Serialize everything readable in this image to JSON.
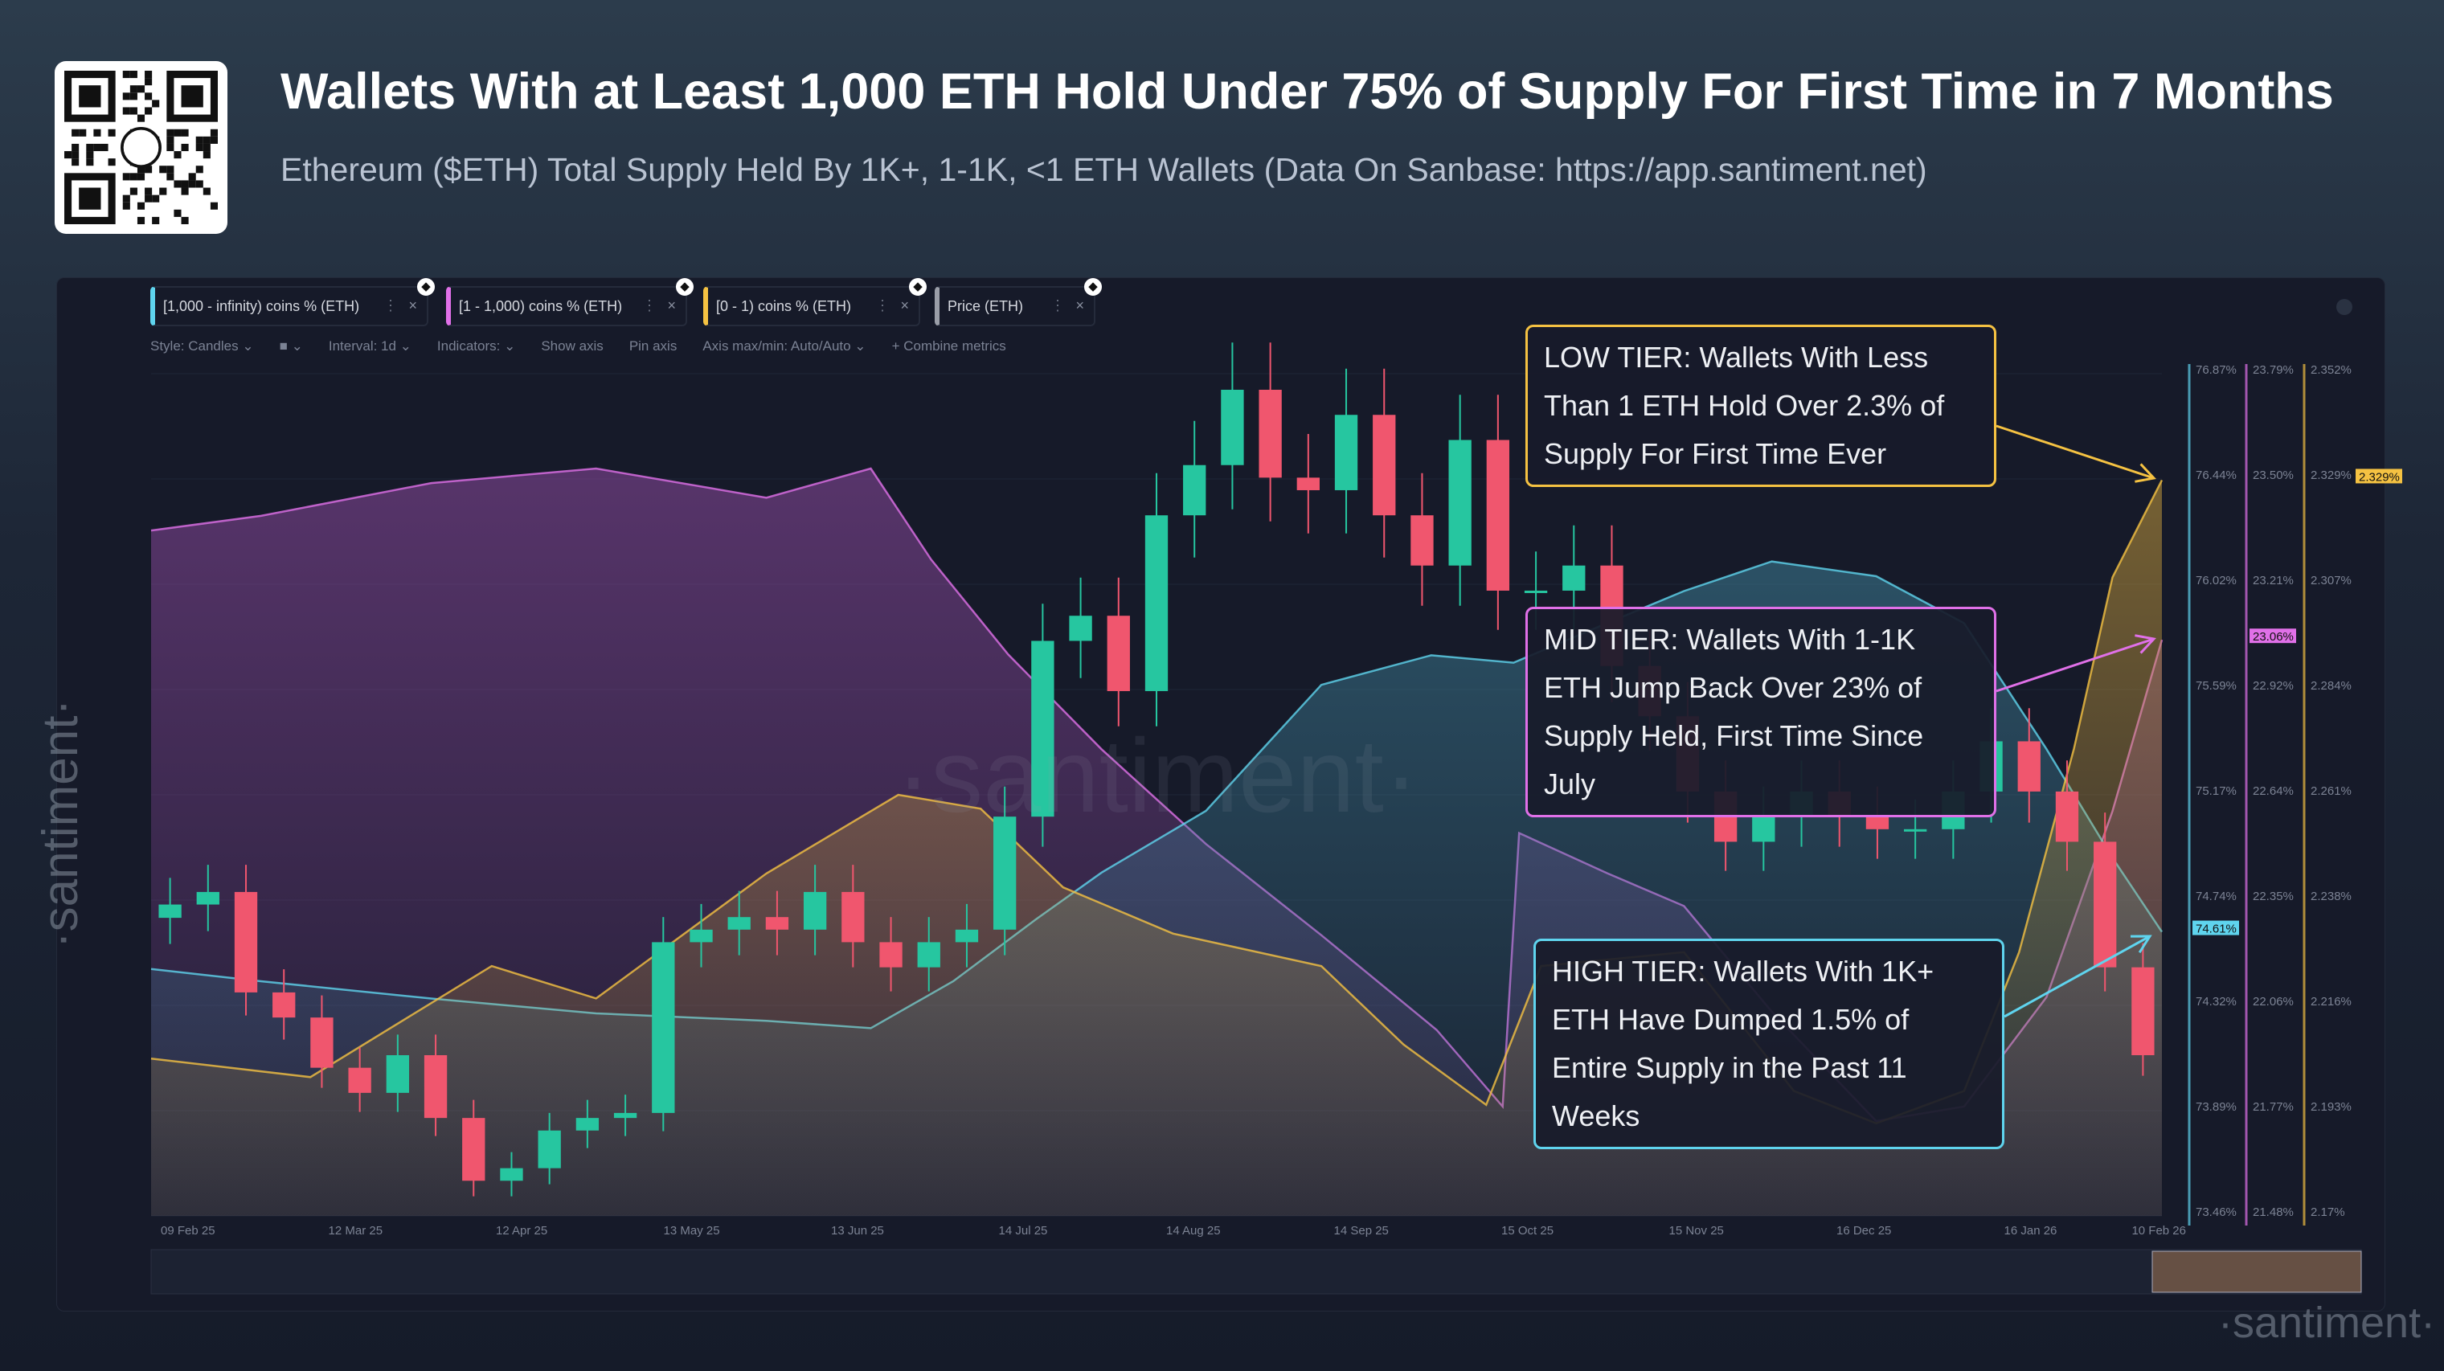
{
  "header": {
    "title": "Wallets With at Least 1,000 ETH Hold Under 75% of Supply For First Time in 7 Months",
    "subtitle": "Ethereum ($ETH) Total Supply Held By 1K+, 1-1K, <1 ETH Wallets (Data On Sanbase: https://app.santiment.net)"
  },
  "tabs": [
    {
      "label": "[1,000 - infinity) coins % (ETH)",
      "color": "#5fd4ee"
    },
    {
      "label": "[1 - 1,000) coins % (ETH)",
      "color": "#e070e8"
    },
    {
      "label": "[0 - 1) coins % (ETH)",
      "color": "#f5c242"
    },
    {
      "label": "Price (ETH)",
      "color": "#9a9ea8"
    }
  ],
  "toolbar": {
    "style": "Style: Candles ⌄",
    "color": "■ ⌄",
    "interval": "Interval: 1d ⌄",
    "indicators": "Indicators: ⌄",
    "show_axis": "Show axis",
    "pin_axis": "Pin axis",
    "axis_maxmin": "Axis max/min: Auto/Auto ⌄",
    "combine": "+ Combine metrics"
  },
  "annotations": {
    "low": "LOW TIER: Wallets With Less Than 1 ETH Hold Over 2.3% of Supply For First Time Ever",
    "mid": "MID TIER: Wallets With 1-1K ETH Jump Back Over 23% of Supply Held, First Time Since July",
    "high": "HIGH TIER: Wallets With 1K+ ETH Have Dumped 1.5% of Entire Supply in the Past 11 Weeks"
  },
  "watermark": "·santiment·",
  "chart_data": {
    "type": "line",
    "x_ticks": [
      "09 Feb 25",
      "12 Mar 25",
      "12 Apr 25",
      "13 May 25",
      "13 Jun 25",
      "14 Jul 25",
      "14 Aug 25",
      "14 Sep 25",
      "15 Oct 25",
      "15 Nov 25",
      "16 Dec 25",
      "16 Jan 26",
      "10 Feb 26"
    ],
    "xlim": [
      "2025-02-09",
      "2026-02-10"
    ],
    "axes": [
      {
        "series": "[1,000 - infinity) coins % (ETH)",
        "ylim": [
          73.46,
          76.87
        ],
        "ticks": [
          "76.87%",
          "76.44%",
          "76.02%",
          "75.59%",
          "75.17%",
          "74.74%",
          "74.32%",
          "73.89%",
          "73.46%"
        ],
        "last": "74.61%",
        "color": "#5fd4ee"
      },
      {
        "series": "[1 - 1,000) coins % (ETH)",
        "ylim": [
          21.48,
          23.79
        ],
        "ticks": [
          "23.79%",
          "23.50%",
          "23.21%",
          "22.92%",
          "22.64%",
          "22.35%",
          "22.06%",
          "21.77%",
          "21.48%"
        ],
        "last": "23.06%",
        "color": "#e070e8"
      },
      {
        "series": "[0 - 1) coins % (ETH)",
        "ylim": [
          2.17,
          2.352
        ],
        "ticks": [
          "2.352%",
          "2.329%",
          "2.307%",
          "2.284%",
          "2.261%",
          "2.238%",
          "2.216%",
          "2.193%",
          "2.17%"
        ],
        "last": "2.329%",
        "color": "#f5c242"
      }
    ],
    "series": [
      {
        "name": "[1,000 - infinity) coins % (ETH)",
        "points": [
          [
            "2025-02-09",
            74.46
          ],
          [
            "2025-03-01",
            74.41
          ],
          [
            "2025-04-01",
            74.34
          ],
          [
            "2025-05-01",
            74.28
          ],
          [
            "2025-06-01",
            74.25
          ],
          [
            "2025-06-20",
            74.22
          ],
          [
            "2025-07-05",
            74.41
          ],
          [
            "2025-07-20",
            74.66
          ],
          [
            "2025-08-01",
            74.85
          ],
          [
            "2025-08-20",
            75.1
          ],
          [
            "2025-09-10",
            75.61
          ],
          [
            "2025-09-30",
            75.73
          ],
          [
            "2025-10-15",
            75.7
          ],
          [
            "2025-11-01",
            75.86
          ],
          [
            "2025-11-15",
            75.99
          ],
          [
            "2025-12-01",
            76.11
          ],
          [
            "2025-12-20",
            76.05
          ],
          [
            "2026-01-05",
            75.86
          ],
          [
            "2026-01-20",
            75.35
          ],
          [
            "2026-02-01",
            74.91
          ],
          [
            "2026-02-10",
            74.61
          ]
        ]
      },
      {
        "name": "[1 - 1,000) coins % (ETH)",
        "points": [
          [
            "2025-02-09",
            23.36
          ],
          [
            "2025-03-01",
            23.4
          ],
          [
            "2025-04-01",
            23.49
          ],
          [
            "2025-05-01",
            23.53
          ],
          [
            "2025-06-01",
            23.45
          ],
          [
            "2025-06-20",
            23.53
          ],
          [
            "2025-07-01",
            23.28
          ],
          [
            "2025-07-15",
            23.02
          ],
          [
            "2025-08-01",
            22.76
          ],
          [
            "2025-08-20",
            22.5
          ],
          [
            "2025-09-10",
            22.25
          ],
          [
            "2025-10-01",
            21.99
          ],
          [
            "2025-10-13",
            21.78
          ],
          [
            "2025-10-16",
            22.53
          ],
          [
            "2025-11-01",
            22.42
          ],
          [
            "2025-11-15",
            22.33
          ],
          [
            "2025-12-01",
            22.04
          ],
          [
            "2025-12-20",
            21.74
          ],
          [
            "2026-01-05",
            21.78
          ],
          [
            "2026-01-20",
            22.08
          ],
          [
            "2026-02-01",
            22.59
          ],
          [
            "2026-02-10",
            23.06
          ]
        ]
      },
      {
        "name": "[0 - 1) coins % (ETH)",
        "points": [
          [
            "2025-02-09",
            2.204
          ],
          [
            "2025-03-10",
            2.2
          ],
          [
            "2025-04-12",
            2.224
          ],
          [
            "2025-05-01",
            2.217
          ],
          [
            "2025-06-01",
            2.244
          ],
          [
            "2025-06-25",
            2.261
          ],
          [
            "2025-07-10",
            2.258
          ],
          [
            "2025-07-25",
            2.241
          ],
          [
            "2025-08-14",
            2.231
          ],
          [
            "2025-09-10",
            2.224
          ],
          [
            "2025-09-25",
            2.207
          ],
          [
            "2025-10-10",
            2.194
          ],
          [
            "2025-10-20",
            2.224
          ],
          [
            "2025-11-15",
            2.227
          ],
          [
            "2025-12-05",
            2.197
          ],
          [
            "2025-12-20",
            2.19
          ],
          [
            "2026-01-05",
            2.197
          ],
          [
            "2026-01-15",
            2.227
          ],
          [
            "2026-01-25",
            2.271
          ],
          [
            "2026-02-01",
            2.308
          ],
          [
            "2026-02-10",
            2.329
          ]
        ]
      },
      {
        "name": "Price (ETH)",
        "style": "candles",
        "ylim": [
          1410,
          4764
        ],
        "weekly_close": [
          2650,
          2700,
          2300,
          2200,
          2000,
          1900,
          2050,
          1800,
          1550,
          1600,
          1750,
          1800,
          1820,
          2500,
          2550,
          2600,
          2550,
          2700,
          2500,
          2400,
          2500,
          2550,
          3000,
          3700,
          3800,
          3500,
          4200,
          4400,
          4700,
          4350,
          4300,
          4600,
          4200,
          4000,
          4500,
          3900,
          3900,
          4000,
          3600,
          3400,
          3100,
          2900,
          3000,
          3100,
          3000,
          2950,
          2950,
          3100,
          3300,
          3100,
          2900,
          2400,
          2050
        ]
      }
    ]
  }
}
